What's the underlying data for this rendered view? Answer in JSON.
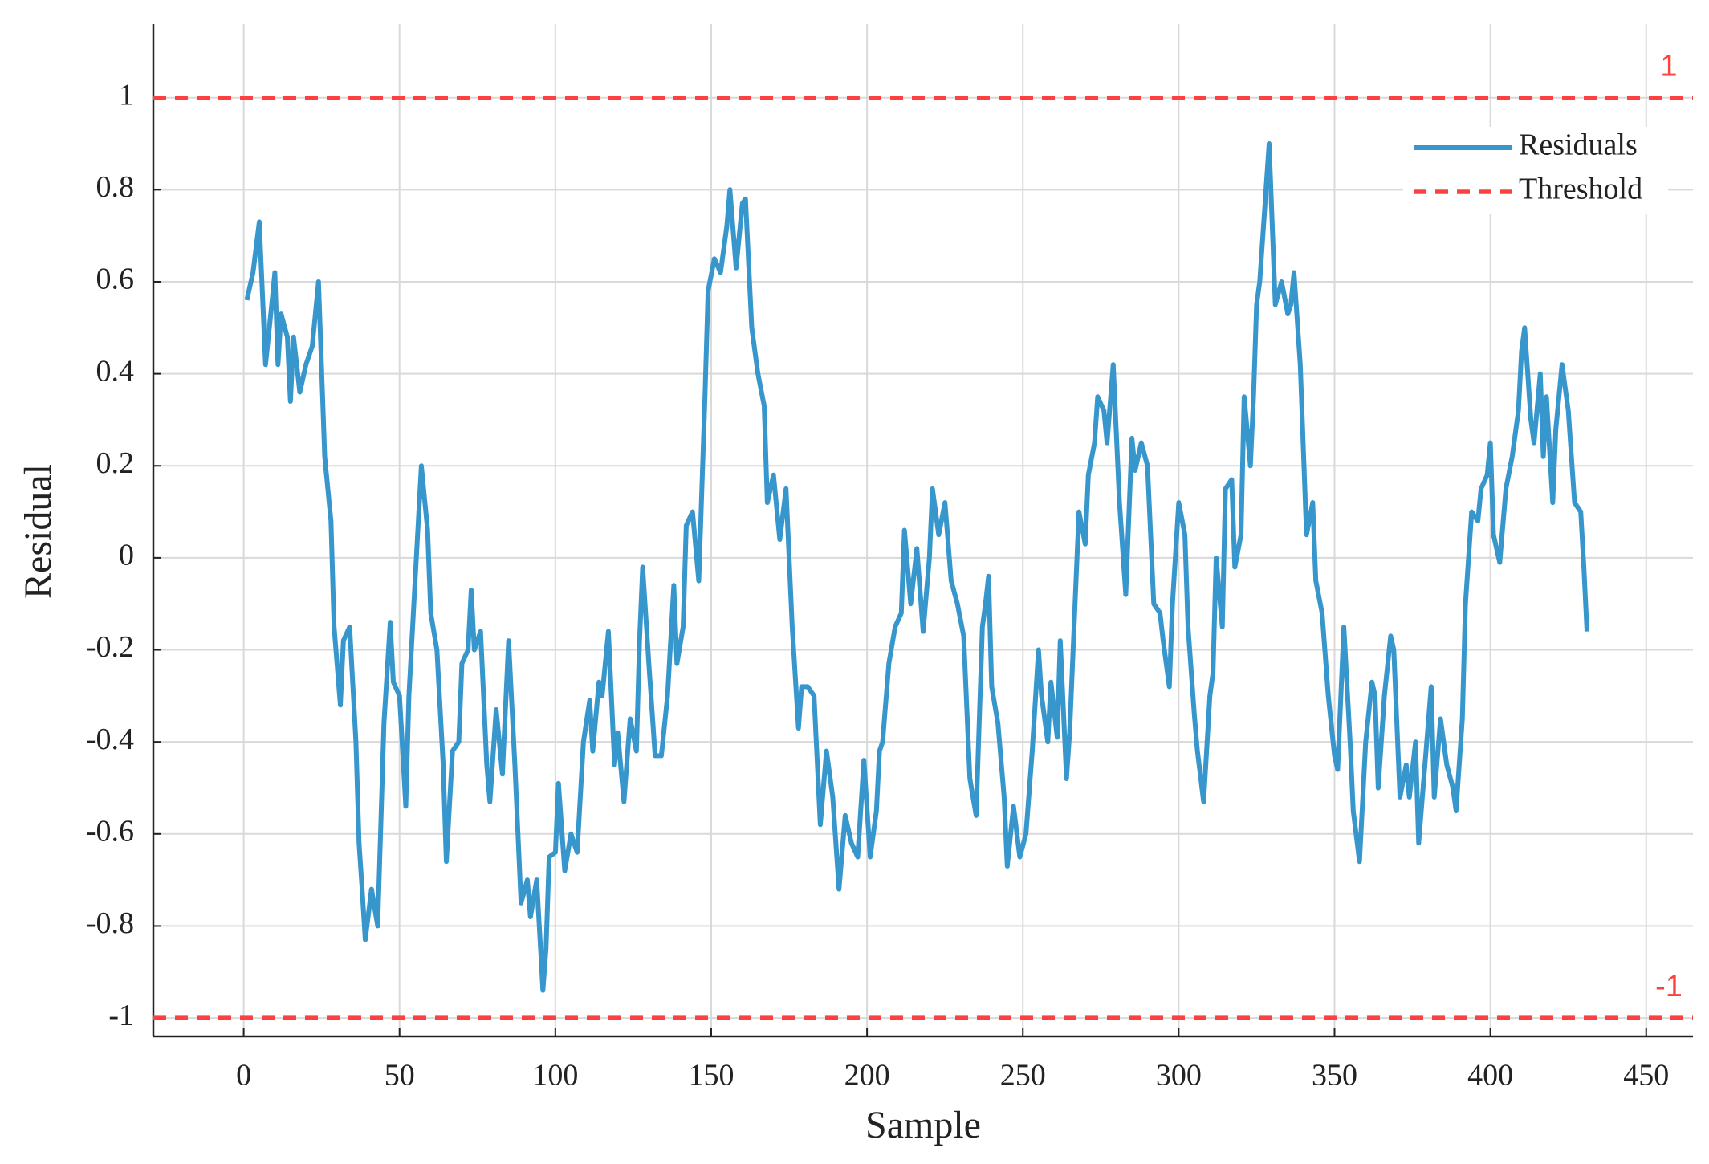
{
  "chart_data": {
    "type": "line",
    "xlabel": "Sample",
    "ylabel": "Residual",
    "xlim": [
      -29,
      465
    ],
    "ylim": [
      -1.04,
      1.16
    ],
    "xticks": [
      0,
      50,
      100,
      150,
      200,
      250,
      300,
      350,
      400,
      450
    ],
    "yticks": [
      -1,
      -0.8,
      -0.6,
      -0.4,
      -0.2,
      0,
      0.2,
      0.4,
      0.6,
      0.8,
      1
    ],
    "grid": true,
    "legend": "upper right",
    "series": [
      {
        "name": "Residuals",
        "color": "#3796cc",
        "x": [
          1,
          3,
          5,
          7,
          9,
          10,
          11,
          12,
          14,
          15,
          16,
          18,
          20,
          22,
          24,
          26,
          28,
          29,
          31,
          32,
          34,
          36,
          37,
          38,
          39,
          41,
          43,
          45,
          47,
          48,
          50,
          52,
          53,
          55,
          57,
          59,
          60,
          62,
          64,
          65,
          67,
          69,
          70,
          72,
          73,
          74,
          76,
          78,
          79,
          81,
          83,
          85,
          87,
          89,
          91,
          92,
          94,
          96,
          97,
          98,
          100,
          101,
          103,
          105,
          107,
          109,
          111,
          112,
          114,
          115,
          117,
          119,
          120,
          122,
          124,
          126,
          127,
          128,
          130,
          132,
          134,
          136,
          138,
          139,
          141,
          142,
          144,
          146,
          148,
          149,
          151,
          153,
          155,
          156,
          158,
          160,
          161,
          163,
          165,
          167,
          168,
          170,
          172,
          174,
          176,
          178,
          179,
          181,
          183,
          185,
          187,
          189,
          191,
          193,
          195,
          197,
          199,
          201,
          203,
          204,
          205,
          207,
          209,
          211,
          212,
          214,
          216,
          218,
          220,
          221,
          223,
          225,
          227,
          229,
          231,
          233,
          235,
          237,
          238,
          239,
          240,
          242,
          244,
          245,
          247,
          249,
          251,
          253,
          255,
          256,
          258,
          259,
          261,
          262,
          264,
          265,
          267,
          268,
          270,
          271,
          273,
          274,
          276,
          277,
          279,
          281,
          283,
          285,
          286,
          288,
          290,
          292,
          294,
          295,
          297,
          298,
          300,
          302,
          303,
          305,
          306,
          308,
          310,
          311,
          312,
          314,
          315,
          317,
          318,
          320,
          321,
          323,
          324,
          325,
          326,
          327,
          328,
          329,
          331,
          333,
          335,
          336,
          337,
          339,
          341,
          343,
          344,
          346,
          348,
          350,
          351,
          353,
          355,
          356,
          358,
          360,
          362,
          363,
          364,
          366,
          368,
          369,
          371,
          373,
          374,
          376,
          377,
          379,
          381,
          382,
          384,
          386,
          388,
          389,
          391,
          392,
          394,
          396,
          397,
          399,
          400,
          401,
          403,
          405,
          407,
          409,
          410,
          411,
          413,
          414,
          416,
          417,
          418,
          420,
          421,
          423,
          425,
          427,
          429,
          430,
          431
        ],
        "values": [
          0.56,
          0.62,
          0.73,
          0.42,
          0.55,
          0.62,
          0.42,
          0.53,
          0.48,
          0.34,
          0.48,
          0.36,
          0.42,
          0.46,
          0.6,
          0.22,
          0.08,
          -0.15,
          -0.32,
          -0.18,
          -0.15,
          -0.4,
          -0.62,
          -0.72,
          -0.83,
          -0.72,
          -0.8,
          -0.36,
          -0.14,
          -0.27,
          -0.3,
          -0.54,
          -0.3,
          -0.05,
          0.2,
          0.06,
          -0.12,
          -0.2,
          -0.45,
          -0.66,
          -0.42,
          -0.4,
          -0.23,
          -0.2,
          -0.07,
          -0.2,
          -0.16,
          -0.45,
          -0.53,
          -0.33,
          -0.47,
          -0.18,
          -0.45,
          -0.75,
          -0.7,
          -0.78,
          -0.7,
          -0.94,
          -0.85,
          -0.65,
          -0.64,
          -0.49,
          -0.68,
          -0.6,
          -0.64,
          -0.4,
          -0.31,
          -0.42,
          -0.27,
          -0.3,
          -0.16,
          -0.45,
          -0.38,
          -0.53,
          -0.35,
          -0.42,
          -0.18,
          -0.02,
          -0.23,
          -0.43,
          -0.43,
          -0.3,
          -0.06,
          -0.23,
          -0.15,
          0.07,
          0.1,
          -0.05,
          0.35,
          0.58,
          0.65,
          0.62,
          0.72,
          0.8,
          0.63,
          0.77,
          0.78,
          0.5,
          0.4,
          0.33,
          0.12,
          0.18,
          0.04,
          0.15,
          -0.15,
          -0.37,
          -0.28,
          -0.28,
          -0.3,
          -0.58,
          -0.42,
          -0.52,
          -0.72,
          -0.56,
          -0.62,
          -0.65,
          -0.44,
          -0.65,
          -0.55,
          -0.42,
          -0.4,
          -0.23,
          -0.15,
          -0.12,
          0.06,
          -0.1,
          0.02,
          -0.16,
          0.0,
          0.15,
          0.05,
          0.12,
          -0.05,
          -0.1,
          -0.17,
          -0.48,
          -0.56,
          -0.15,
          -0.1,
          -0.04,
          -0.28,
          -0.36,
          -0.52,
          -0.67,
          -0.54,
          -0.65,
          -0.6,
          -0.42,
          -0.2,
          -0.3,
          -0.4,
          -0.27,
          -0.39,
          -0.18,
          -0.48,
          -0.38,
          -0.06,
          0.1,
          0.03,
          0.18,
          0.25,
          0.35,
          0.32,
          0.25,
          0.42,
          0.12,
          -0.08,
          0.26,
          0.19,
          0.25,
          0.2,
          -0.1,
          -0.12,
          -0.18,
          -0.28,
          -0.1,
          0.12,
          0.05,
          -0.15,
          -0.34,
          -0.42,
          -0.53,
          -0.3,
          -0.25,
          0.0,
          -0.15,
          0.15,
          0.17,
          -0.02,
          0.05,
          0.35,
          0.2,
          0.35,
          0.55,
          0.6,
          0.7,
          0.8,
          0.9,
          0.55,
          0.6,
          0.53,
          0.55,
          0.62,
          0.42,
          0.05,
          0.12,
          -0.05,
          -0.12,
          -0.3,
          -0.43,
          -0.46,
          -0.15,
          -0.4,
          -0.55,
          -0.66,
          -0.4,
          -0.27,
          -0.3,
          -0.5,
          -0.3,
          -0.17,
          -0.2,
          -0.52,
          -0.45,
          -0.52,
          -0.4,
          -0.62,
          -0.45,
          -0.28,
          -0.52,
          -0.35,
          -0.45,
          -0.5,
          -0.55,
          -0.35,
          -0.1,
          0.1,
          0.08,
          0.15,
          0.18,
          0.25,
          0.05,
          -0.01,
          0.15,
          0.22,
          0.32,
          0.45,
          0.5,
          0.3,
          0.25,
          0.4,
          0.22,
          0.35,
          0.12,
          0.28,
          0.42,
          0.32,
          0.12,
          0.1,
          -0.02,
          -0.16
        ]
      },
      {
        "name": "Threshold",
        "color": "#ff4040",
        "dashed": true,
        "values": [
          1,
          -1
        ],
        "labels": [
          "1",
          "-1"
        ]
      }
    ]
  }
}
